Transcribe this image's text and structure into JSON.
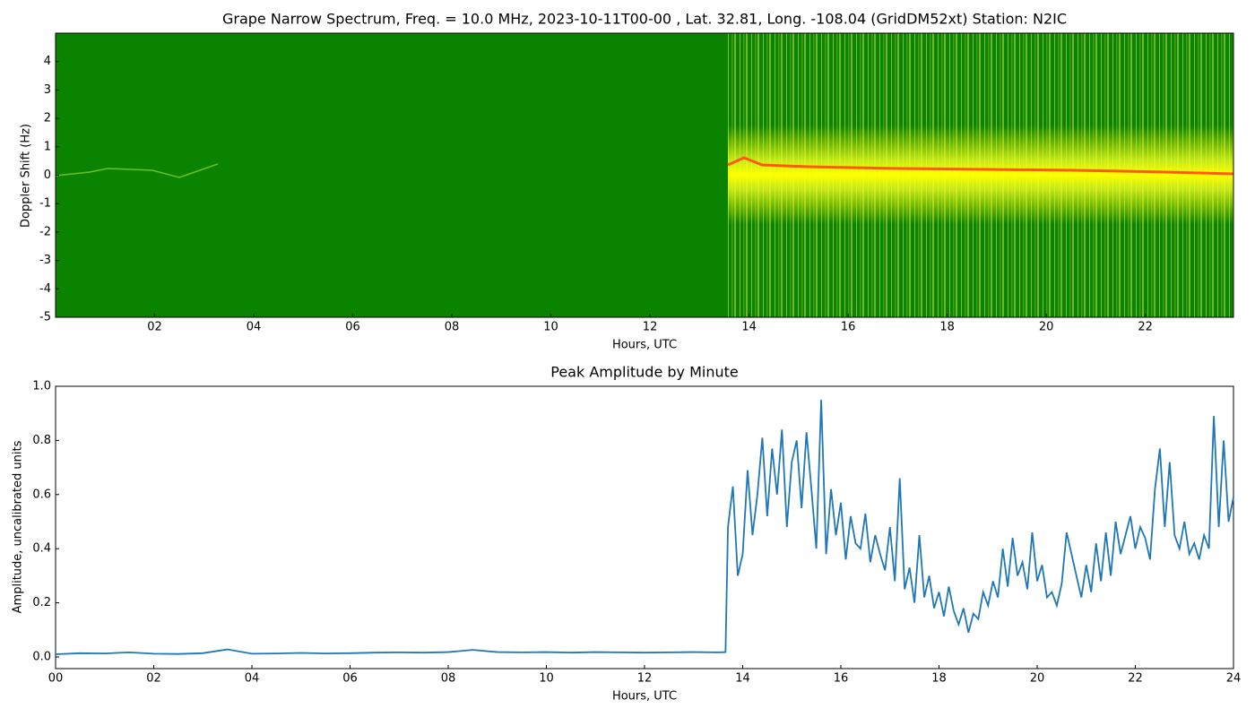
{
  "chart_data": [
    {
      "type": "heatmap",
      "title": "Grape Narrow Spectrum, Freq. = 10.0 MHz, 2023-10-11T00-00 , Lat.  32.81, Long. -108.04 (GridDM52xt) Station: N2IC",
      "xlabel": "Hours, UTC",
      "ylabel": "Doppler Shift (Hz)",
      "xlim": [
        0,
        23.78
      ],
      "ylim": [
        -5,
        5
      ],
      "xticks": [
        {
          "value": 2,
          "label": "02"
        },
        {
          "value": 4,
          "label": "04"
        },
        {
          "value": 6,
          "label": "06"
        },
        {
          "value": 8,
          "label": "08"
        },
        10,
        12,
        14,
        16,
        18,
        20,
        22
      ],
      "yticks": [
        -5,
        -4,
        -3,
        -2,
        -1,
        0,
        1,
        2,
        3,
        4
      ]
    },
    {
      "type": "line",
      "title": "Peak Amplitude by Minute",
      "xlabel": "Hours, UTC",
      "ylabel": "Amplitude, uncalibrated units",
      "xlim": [
        0,
        24
      ],
      "ylim": [
        -0.043,
        1.0
      ],
      "xticks": [
        {
          "value": 0,
          "label": "00"
        },
        {
          "value": 2,
          "label": "02"
        },
        {
          "value": 4,
          "label": "04"
        },
        {
          "value": 6,
          "label": "06"
        },
        {
          "value": 8,
          "label": "08"
        },
        10,
        12,
        14,
        16,
        18,
        20,
        22,
        24
      ],
      "yticks": [
        {
          "value": 0,
          "label": "0.0"
        },
        0.2,
        0.4,
        0.6,
        0.8,
        {
          "value": 1,
          "label": "1.0"
        }
      ],
      "color": "#1f77b4",
      "x": [
        0,
        0.5,
        1,
        1.5,
        2,
        2.5,
        3,
        3.5,
        4,
        4.5,
        5,
        5.5,
        6,
        6.5,
        7,
        7.5,
        8,
        8.5,
        9,
        9.5,
        10,
        10.5,
        11,
        11.5,
        12,
        12.5,
        13,
        13.5,
        13.65,
        13.7,
        13.8,
        13.9,
        14,
        14.1,
        14.2,
        14.3,
        14.4,
        14.5,
        14.6,
        14.7,
        14.8,
        14.9,
        15,
        15.1,
        15.2,
        15.3,
        15.4,
        15.5,
        15.6,
        15.7,
        15.8,
        15.9,
        16,
        16.1,
        16.2,
        16.3,
        16.4,
        16.5,
        16.6,
        16.7,
        16.8,
        16.9,
        17,
        17.1,
        17.2,
        17.3,
        17.4,
        17.5,
        17.6,
        17.7,
        17.8,
        17.9,
        18,
        18.1,
        18.2,
        18.3,
        18.4,
        18.5,
        18.6,
        18.7,
        18.8,
        18.9,
        19,
        19.1,
        19.2,
        19.3,
        19.4,
        19.5,
        19.6,
        19.7,
        19.8,
        19.9,
        20,
        20.1,
        20.2,
        20.3,
        20.4,
        20.5,
        20.6,
        20.7,
        20.8,
        20.9,
        21,
        21.1,
        21.2,
        21.3,
        21.4,
        21.5,
        21.6,
        21.7,
        21.8,
        21.9,
        22,
        22.1,
        22.2,
        22.3,
        22.4,
        22.5,
        22.6,
        22.7,
        22.8,
        22.9,
        23,
        23.1,
        23.2,
        23.3,
        23.4,
        23.5,
        23.6,
        23.7,
        23.8,
        23.9,
        24
      ],
      "values": [
        0.01,
        0.014,
        0.013,
        0.017,
        0.012,
        0.011,
        0.014,
        0.028,
        0.012,
        0.013,
        0.015,
        0.013,
        0.014,
        0.016,
        0.017,
        0.016,
        0.018,
        0.026,
        0.018,
        0.017,
        0.018,
        0.016,
        0.018,
        0.017,
        0.016,
        0.017,
        0.018,
        0.017,
        0.018,
        0.48,
        0.63,
        0.3,
        0.38,
        0.69,
        0.45,
        0.6,
        0.81,
        0.52,
        0.77,
        0.6,
        0.84,
        0.48,
        0.72,
        0.8,
        0.55,
        0.83,
        0.62,
        0.4,
        0.95,
        0.38,
        0.62,
        0.45,
        0.57,
        0.36,
        0.52,
        0.42,
        0.4,
        0.53,
        0.35,
        0.45,
        0.38,
        0.32,
        0.48,
        0.28,
        0.66,
        0.25,
        0.33,
        0.2,
        0.45,
        0.22,
        0.3,
        0.18,
        0.24,
        0.15,
        0.26,
        0.17,
        0.12,
        0.18,
        0.09,
        0.16,
        0.14,
        0.24,
        0.19,
        0.28,
        0.22,
        0.4,
        0.26,
        0.44,
        0.3,
        0.35,
        0.25,
        0.46,
        0.28,
        0.34,
        0.22,
        0.24,
        0.19,
        0.27,
        0.46,
        0.38,
        0.3,
        0.22,
        0.34,
        0.24,
        0.42,
        0.28,
        0.46,
        0.3,
        0.5,
        0.38,
        0.45,
        0.52,
        0.4,
        0.48,
        0.44,
        0.36,
        0.62,
        0.77,
        0.48,
        0.72,
        0.45,
        0.4,
        0.5,
        0.38,
        0.42,
        0.36,
        0.45,
        0.4,
        0.89,
        0.48,
        0.8,
        0.5,
        0.59
      ]
    }
  ]
}
